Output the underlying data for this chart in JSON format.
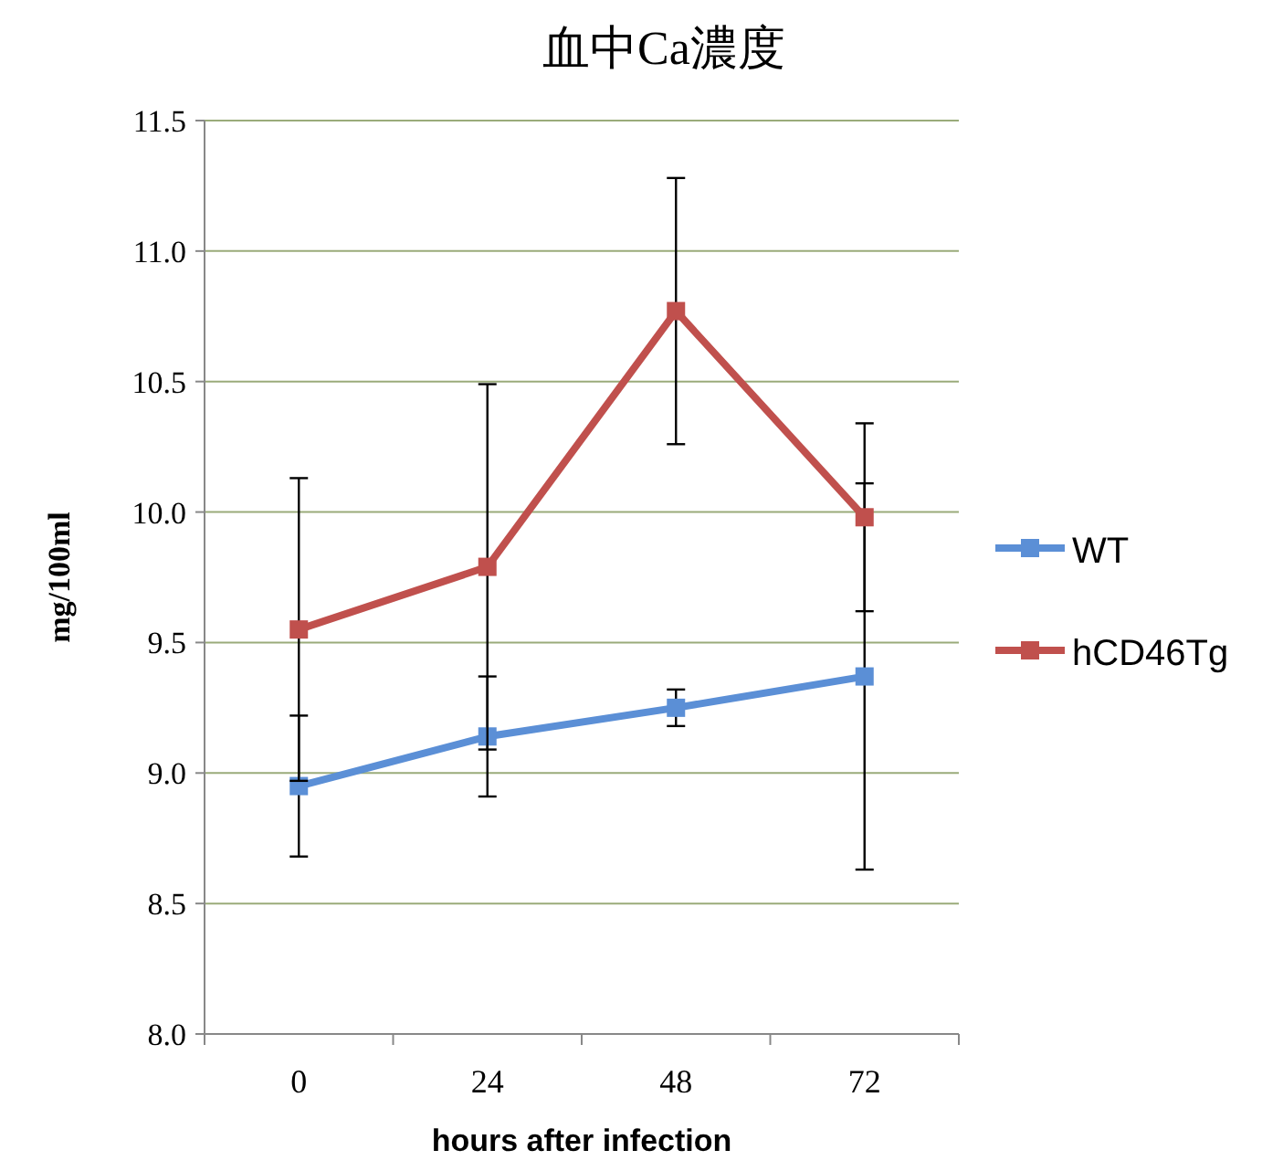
{
  "chart_data": {
    "type": "line",
    "title": "血中Ca濃度",
    "xlabel": "hours after infection",
    "ylabel": "mg/100ml",
    "categories": [
      "0",
      "24",
      "48",
      "72"
    ],
    "series": [
      {
        "name": "WT",
        "color": "#5b8fd6",
        "values": [
          8.95,
          9.14,
          9.25,
          9.37
        ],
        "errors": [
          0.27,
          0.23,
          0.07,
          0.74
        ]
      },
      {
        "name": "hCD46Tg",
        "color": "#c0504d",
        "values": [
          9.55,
          9.79,
          10.77,
          9.98
        ],
        "errors": [
          0.58,
          0.7,
          0.51,
          0.36
        ]
      }
    ],
    "ylim": [
      8,
      11.5
    ],
    "yticks": [
      {
        "value": 8,
        "label": "8.0"
      },
      {
        "value": 8.5,
        "label": "8.5"
      },
      {
        "value": 9,
        "label": "9.0"
      },
      {
        "value": 9.5,
        "label": "9.5"
      },
      {
        "value": 10,
        "label": "10.0"
      },
      {
        "value": 10.5,
        "label": "10.5"
      },
      {
        "value": 11,
        "label": "11.0"
      },
      {
        "value": 11.5,
        "label": "11.5"
      }
    ],
    "grid": "y",
    "legend": "right",
    "marker": "square",
    "line_style": "solid"
  }
}
